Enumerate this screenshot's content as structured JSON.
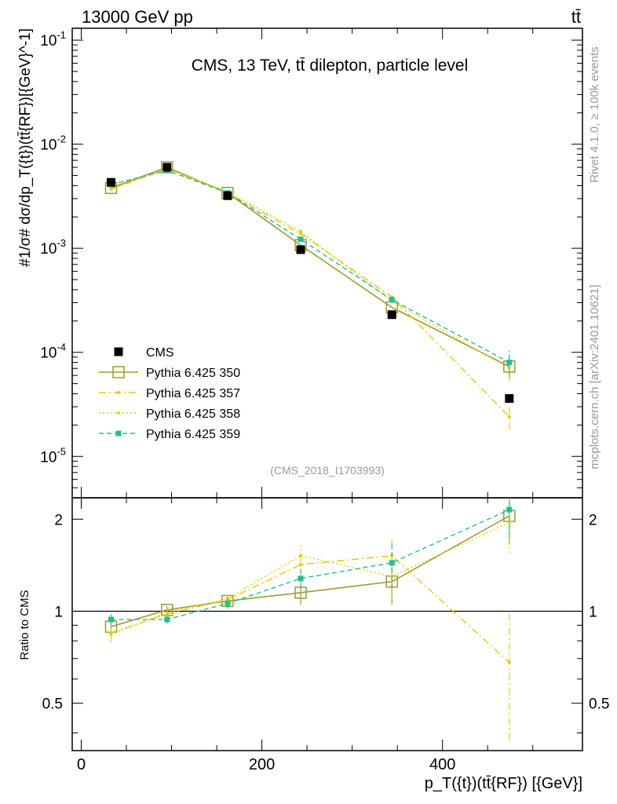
{
  "header": {
    "left": "13000 GeV pp",
    "right": "tt̄"
  },
  "side": {
    "rivet": "Rivet 4.1.0, ≥ 100k events",
    "mcplots": "mcplots.cern.ch [arXiv:2401.10621]"
  },
  "colors": {
    "data": "#000000",
    "p350": "#a09a30",
    "p357": "#e8c800",
    "p358": "#d8d800",
    "p359": "#20c090"
  },
  "chart_data": {
    "type": "line",
    "title": "CMS, 13 TeV, tt̄ dilepton, particle level",
    "analysis_tag": "(CMS_2018_I1703993)",
    "xlabel": "p_T({t})(tt̄{RF}) [{GeV}]",
    "ylabel": "#1/σ# dσ/dp_T({t})(tt̄{RF})[{GeV}^-1]",
    "ratio_ylabel": "Ratio to CMS",
    "xlim": [
      -10,
      555
    ],
    "ylim": [
      4e-06,
      0.13
    ],
    "ratio_ylim": [
      0.35,
      2.35
    ],
    "x_ticks": [
      "0",
      "200",
      "400"
    ],
    "y_ticks": [
      "10^-5",
      "10^-4",
      "10^-3",
      "10^-2",
      "10^-1"
    ],
    "ratio_ticks": [
      "0.5",
      "1",
      "2"
    ],
    "x": [
      33,
      95,
      162,
      243,
      344,
      474
    ],
    "series": [
      {
        "name": "CMS",
        "key": "data",
        "style": "data",
        "values": [
          0.0043,
          0.006,
          0.0032,
          0.00097,
          0.00023,
          3.6e-05
        ],
        "ratio": [
          1,
          1,
          1,
          1,
          1,
          1
        ],
        "ratio_err": [
          0.04,
          0.03,
          0.03,
          0.05,
          0.07,
          0.1
        ]
      },
      {
        "name": "Pythia 6.425 350",
        "key": "p350",
        "style": "solid",
        "values": [
          0.0038,
          0.006,
          0.0034,
          0.00107,
          0.00027,
          7.3e-05
        ],
        "ratio": [
          0.89,
          1.01,
          1.08,
          1.15,
          1.25,
          2.05
        ],
        "ratio_err": [
          0.04,
          0.03,
          0.04,
          0.1,
          0.2,
          0.4
        ]
      },
      {
        "name": "Pythia 6.425 357",
        "key": "p357",
        "style": "dashdot",
        "values": [
          0.0037,
          0.0058,
          0.0034,
          0.00138,
          0.00034,
          2.4e-05
        ],
        "ratio": [
          0.85,
          0.98,
          1.09,
          1.42,
          1.52,
          0.68
        ],
        "ratio_err": [
          0.05,
          0.04,
          0.05,
          0.12,
          0.2,
          0.3
        ]
      },
      {
        "name": "Pythia 6.425 358",
        "key": "p358",
        "style": "dotted",
        "values": [
          0.0037,
          0.0058,
          0.0035,
          0.00145,
          0.00031,
          7e-05
        ],
        "ratio": [
          0.84,
          0.99,
          1.1,
          1.52,
          1.3,
          1.95
        ],
        "ratio_err": [
          0.05,
          0.04,
          0.05,
          0.12,
          0.2,
          0.4
        ]
      },
      {
        "name": "Pythia 6.425 359",
        "key": "p359",
        "style": "dashed",
        "values": [
          0.0041,
          0.0056,
          0.0034,
          0.00122,
          0.00032,
          8e-05
        ],
        "ratio": [
          0.94,
          0.94,
          1.06,
          1.28,
          1.44,
          2.15
        ],
        "ratio_err": [
          0.04,
          0.03,
          0.04,
          0.1,
          0.25,
          0.4
        ]
      }
    ]
  }
}
